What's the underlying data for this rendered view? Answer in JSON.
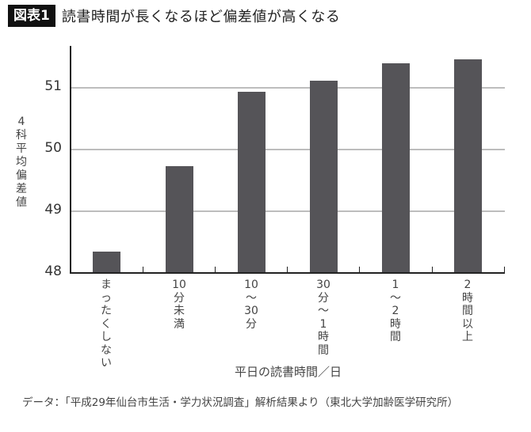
{
  "header": {
    "badge": "図表1",
    "title": "読書時間が長くなるほど偏差値が高くなる"
  },
  "chart_data": {
    "type": "bar",
    "title": "読書時間が長くなるほど偏差値が高くなる",
    "figure_label": "図表1",
    "categories": [
      "まったくしない",
      "10分未満",
      "10~30分",
      "30分~1時間",
      "1~2時間",
      "2時間以上"
    ],
    "category_labels_vertical": [
      "まったくしない",
      "10分未満",
      "10〜30分",
      "30分〜1時間",
      "1〜2時間",
      "2時間以上"
    ],
    "values": [
      48.34,
      49.73,
      50.93,
      51.12,
      51.4,
      51.46
    ],
    "xlabel": "平日の読書時間／日",
    "ylabel": "4科平均偏差値",
    "ylim": [
      48,
      51.7
    ],
    "yticks": [
      48,
      49,
      50,
      51
    ],
    "grid": true,
    "legend": null,
    "bar_color": "#555458",
    "source": "データ：「平成29年仙台市生活・学力状況調査」解析結果より（東北大学加齢医学研究所）"
  },
  "axis": {
    "ytick_labels": [
      "51",
      "50",
      "49",
      "48"
    ],
    "ylabel_chars": [
      "4",
      "科",
      "平",
      "均",
      "偏",
      "差",
      "値"
    ]
  },
  "xlabels": [
    [
      "ま",
      "っ",
      "た",
      "く",
      "し",
      "な",
      "い"
    ],
    [
      "10",
      "分",
      "未",
      "満"
    ],
    [
      "10",
      "〜",
      "30",
      "分"
    ],
    [
      "30",
      "分",
      "〜",
      "1",
      "時",
      "間"
    ],
    [
      "1",
      "〜",
      "2",
      "時",
      "間"
    ],
    [
      "2",
      "時",
      "間",
      "以",
      "上"
    ]
  ],
  "footnote": "データ：「平成29年仙台市生活・学力状況調査」解析結果より（東北大学加齢医学研究所）"
}
